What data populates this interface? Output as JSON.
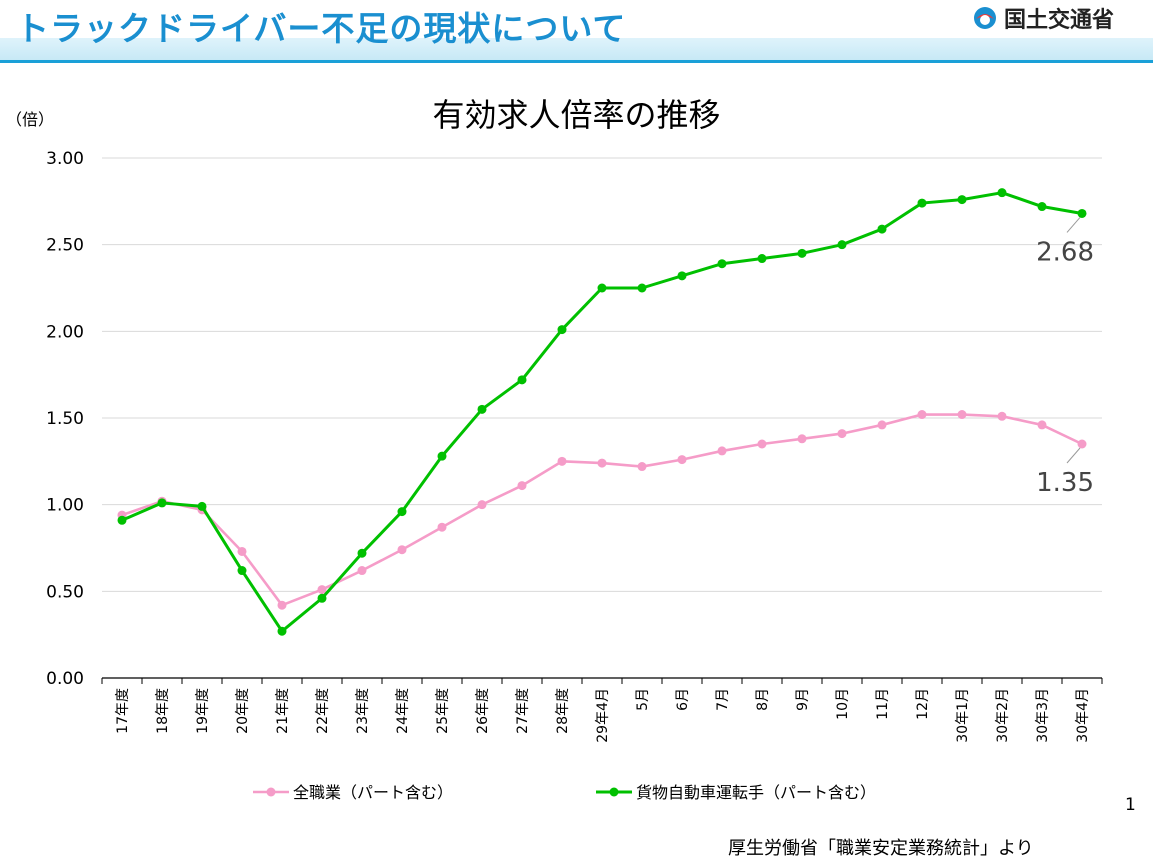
{
  "header": {
    "title": "トラックドライバー不足の現状について",
    "logo_text": "国土交通省"
  },
  "page_number": "1",
  "source": "厚生労働省「職業安定業務統計」より",
  "colors": {
    "series_all": "#f59cc8",
    "series_truck": "#00c000",
    "accent": "#1a8fd0"
  },
  "chart_data": {
    "type": "line",
    "title": "有効求人倍率の推移",
    "ylabel": "（倍）",
    "xlabel": "",
    "ylim": [
      0,
      3
    ],
    "yticks": [
      "0.00",
      "0.50",
      "1.00",
      "1.50",
      "2.00",
      "2.50",
      "3.00"
    ],
    "grid": true,
    "legend_placement": "bottom",
    "categories": [
      "17年度",
      "18年度",
      "19年度",
      "20年度",
      "21年度",
      "22年度",
      "23年度",
      "24年度",
      "25年度",
      "26年度",
      "27年度",
      "28年度",
      "29年4月",
      "5月",
      "6月",
      "7月",
      "8月",
      "9月",
      "10月",
      "11月",
      "12月",
      "30年1月",
      "30年2月",
      "30年3月",
      "30年4月"
    ],
    "series": [
      {
        "name": "全職業（パート含む）",
        "color": "#f59cc8",
        "values": [
          0.94,
          1.02,
          0.97,
          0.73,
          0.42,
          0.51,
          0.62,
          0.74,
          0.87,
          1.0,
          1.11,
          1.25,
          1.24,
          1.22,
          1.26,
          1.31,
          1.35,
          1.38,
          1.41,
          1.46,
          1.52,
          1.52,
          1.51,
          1.46,
          1.35
        ],
        "end_label": "1.35"
      },
      {
        "name": "貨物自動車運転手（パート含む）",
        "color": "#00c000",
        "values": [
          0.91,
          1.01,
          0.99,
          0.62,
          0.27,
          0.46,
          0.72,
          0.96,
          1.28,
          1.55,
          1.72,
          2.01,
          2.25,
          2.25,
          2.32,
          2.39,
          2.42,
          2.45,
          2.5,
          2.59,
          2.74,
          2.76,
          2.8,
          2.72,
          2.68
        ],
        "end_label": "2.68"
      }
    ]
  }
}
